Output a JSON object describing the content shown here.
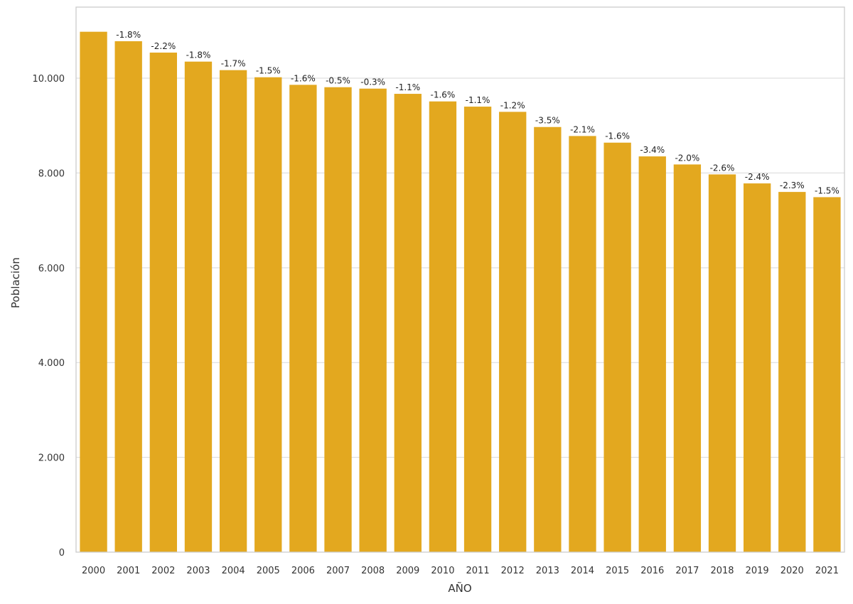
{
  "chart_data": {
    "type": "bar",
    "xlabel": "AÑO",
    "ylabel": "Población",
    "ylim": [
      0,
      11500
    ],
    "yticks": [
      0,
      2000,
      4000,
      6000,
      8000,
      10000
    ],
    "ytick_labels": [
      "0",
      "2.000",
      "4.000",
      "6.000",
      "8.000",
      "10.000"
    ],
    "grid": "horizontal",
    "bar_color": "#e3a81f",
    "categories": [
      "2000",
      "2001",
      "2002",
      "2003",
      "2004",
      "2005",
      "2006",
      "2007",
      "2008",
      "2009",
      "2010",
      "2011",
      "2012",
      "2013",
      "2014",
      "2015",
      "2016",
      "2017",
      "2018",
      "2019",
      "2020",
      "2021"
    ],
    "values": [
      10980,
      10780,
      10540,
      10350,
      10170,
      10020,
      9860,
      9810,
      9780,
      9670,
      9510,
      9400,
      9290,
      8970,
      8780,
      8640,
      8350,
      8180,
      7970,
      7780,
      7600,
      7490
    ],
    "labels": [
      "",
      "-1.8%",
      "-2.2%",
      "-1.8%",
      "-1.7%",
      "-1.5%",
      "-1.6%",
      "-0.5%",
      "-0.3%",
      "-1.1%",
      "-1.6%",
      "-1.1%",
      "-1.2%",
      "-3.5%",
      "-2.1%",
      "-1.6%",
      "-3.4%",
      "-2.0%",
      "-2.6%",
      "-2.4%",
      "-2.3%",
      "-1.5%"
    ]
  }
}
